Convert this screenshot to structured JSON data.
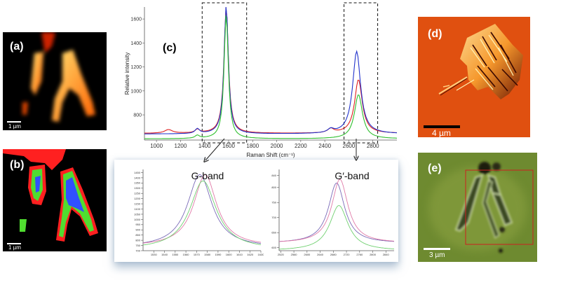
{
  "panels": {
    "a": {
      "label": "(a)",
      "scalebar": "1 µm"
    },
    "b": {
      "label": "(b)",
      "scalebar": "1 µm"
    },
    "c": {
      "label": "(c)"
    },
    "d": {
      "label": "(d)",
      "scalebar": "4 µm"
    },
    "e": {
      "label": "(e)",
      "scalebar": "3 µm"
    }
  },
  "chart_data": [
    {
      "id": "main",
      "type": "line",
      "xlabel": "Raman Shift (cm⁻¹)",
      "ylabel": "Relative intensity",
      "xlim": [
        900,
        3000
      ],
      "ylim": [
        590,
        1700
      ],
      "xticks": [
        1000,
        1200,
        1400,
        1600,
        1800,
        2000,
        2200,
        2400,
        2600,
        2800
      ],
      "yticks": [
        800,
        1000,
        1200,
        1400,
        1600
      ],
      "colors": {
        "red": "#e02020",
        "blue": "#2233cc",
        "green": "#30c030"
      },
      "series": [
        {
          "color": "red",
          "baseline": 645,
          "peaks": [
            [
              1100,
              30,
              40
            ],
            [
              1340,
              30,
              22
            ],
            [
              1580,
              1060,
              22
            ],
            [
              2450,
              35,
              30
            ],
            [
              2680,
              450,
              38
            ]
          ]
        },
        {
          "color": "blue",
          "baseline": 640,
          "peaks": [
            [
              1340,
              40,
              22
            ],
            [
              1580,
              1080,
              21
            ],
            [
              2450,
              30,
              30
            ],
            [
              2665,
              690,
              40
            ]
          ]
        },
        {
          "color": "green",
          "baseline": 600,
          "peaks": [
            [
              1340,
              25,
              22
            ],
            [
              1580,
              1040,
              21
            ],
            [
              2680,
              370,
              40
            ]
          ]
        }
      ],
      "highlight_regions": [
        [
          1380,
          1750
        ],
        [
          2560,
          2840
        ]
      ]
    },
    {
      "id": "g-band",
      "type": "line",
      "title": "G-band",
      "xlim": [
        1520,
        1630
      ],
      "ylim": [
        700,
        1480
      ],
      "xticks": [
        1530,
        1540,
        1550,
        1560,
        1570,
        1580,
        1590,
        1600,
        1610,
        1620,
        1630
      ],
      "xtick_labels": [
        "1530",
        "1540",
        "1550",
        "1560",
        "1570",
        "1580",
        "1590",
        "1600",
        "1610",
        "1620",
        "1630"
      ],
      "yticks": [
        700,
        750,
        800,
        850,
        900,
        950,
        1000,
        1050,
        1100,
        1150,
        1200,
        1250,
        1300,
        1350,
        1400,
        1450
      ],
      "colors": {
        "purple": "#7a6ab8",
        "pink": "#e07aa8",
        "green": "#70d070"
      },
      "series": [
        {
          "color": "purple",
          "baseline": 730,
          "peaks": [
            [
              1573,
              700,
              14
            ]
          ]
        },
        {
          "color": "pink",
          "baseline": 740,
          "peaks": [
            [
              1578,
              690,
              13
            ]
          ]
        },
        {
          "color": "green",
          "baseline": 710,
          "peaks": [
            [
              1576,
              660,
              15
            ]
          ]
        }
      ]
    },
    {
      "id": "g-prime-band",
      "type": "line",
      "title": "G′-band",
      "xlim": [
        2515,
        2865
      ],
      "ylim": [
        590,
        860
      ],
      "xticks": [
        2520,
        2560,
        2600,
        2640,
        2680,
        2720,
        2760,
        2800,
        2840
      ],
      "xtick_labels": [
        "2520",
        "2560",
        "2600",
        "2640",
        "2680",
        "2720",
        "2760",
        "2800",
        "2840"
      ],
      "yticks": [
        600,
        650,
        700,
        750,
        800,
        840
      ],
      "colors": {
        "purple": "#7a6ab8",
        "pink": "#e07aa8",
        "green": "#70d070"
      },
      "series": [
        {
          "color": "purple",
          "baseline": 615,
          "peaks": [
            [
              2690,
              200,
              30
            ]
          ]
        },
        {
          "color": "pink",
          "baseline": 615,
          "peaks": [
            [
              2700,
              212,
              30
            ]
          ]
        },
        {
          "color": "green",
          "baseline": 590,
          "peaks": [
            [
              2697,
              150,
              34
            ]
          ]
        }
      ]
    }
  ]
}
